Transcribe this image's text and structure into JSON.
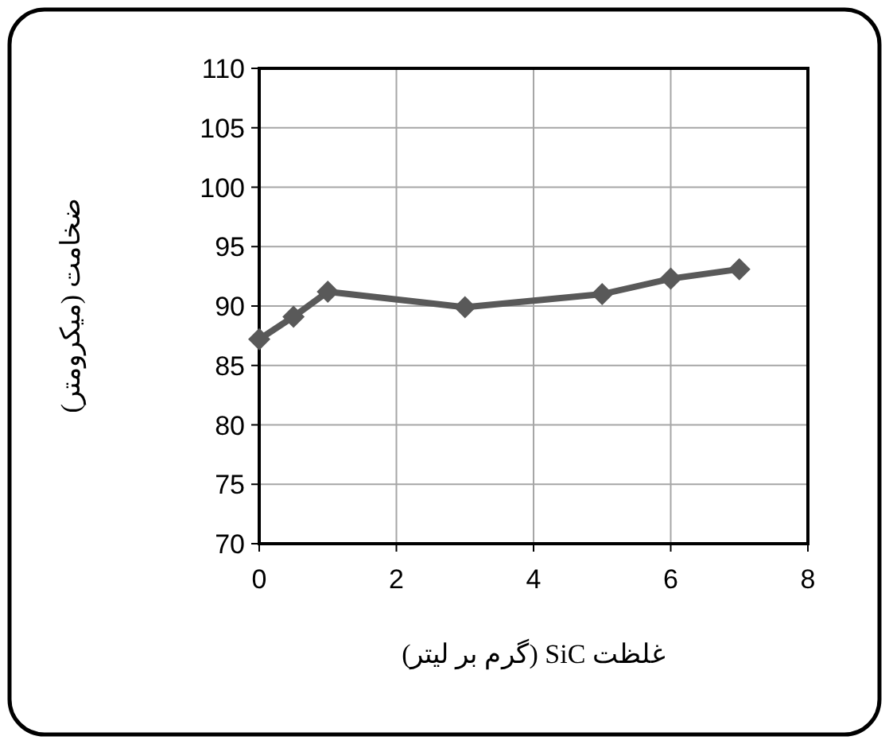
{
  "chart_data": {
    "type": "line",
    "xlabel": "غلظت SiC (گرم بر لیتر)",
    "ylabel": "ضخامت (میکرومتر)",
    "x": [
      0,
      0.5,
      1,
      3,
      5,
      6,
      7
    ],
    "series": [
      {
        "color": "#595959",
        "values": [
          87.2,
          89.1,
          91.2,
          89.9,
          91.0,
          92.3,
          93.1
        ]
      }
    ],
    "xlim": [
      0,
      8
    ],
    "xticks": [
      0,
      2,
      4,
      6,
      8
    ],
    "ylim": [
      70,
      110
    ],
    "yticks": [
      70,
      75,
      80,
      85,
      90,
      95,
      100,
      105,
      110
    ],
    "grid": true,
    "marker": "diamond"
  }
}
